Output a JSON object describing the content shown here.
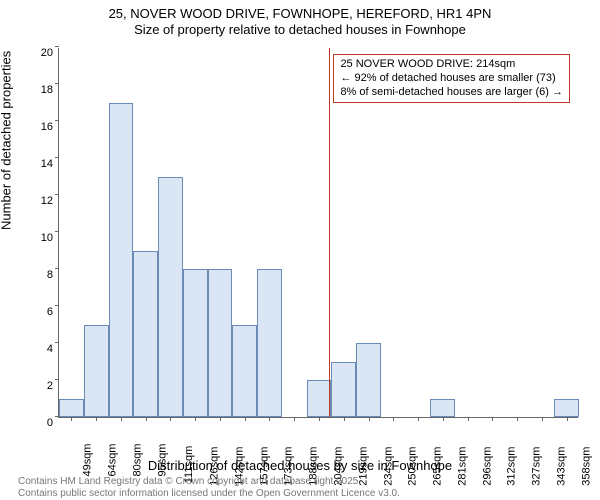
{
  "title": {
    "line1": "25, NOVER WOOD DRIVE, FOWNHOPE, HEREFORD, HR1 4PN",
    "line2": "Size of property relative to detached houses in Fownhope",
    "fontsize": 13,
    "color": "#000000"
  },
  "axes": {
    "ylabel": "Number of detached properties",
    "xlabel": "Distribution of detached houses by size in Fownhope",
    "label_fontsize": 13,
    "tick_fontsize": 11,
    "axis_color": "#666666",
    "ylim": [
      0,
      20
    ],
    "yticks": [
      0,
      2,
      4,
      6,
      8,
      10,
      12,
      14,
      16,
      18,
      20
    ]
  },
  "histogram": {
    "type": "histogram",
    "bar_fill": "#dbe6f5",
    "bar_stroke": "#6a8bb5",
    "categories": [
      "49sqm",
      "64sqm",
      "80sqm",
      "95sqm",
      "111sqm",
      "126sqm",
      "142sqm",
      "157sqm",
      "173sqm",
      "188sqm",
      "204sqm",
      "219sqm",
      "234sqm",
      "250sqm",
      "265sqm",
      "281sqm",
      "296sqm",
      "312sqm",
      "327sqm",
      "343sqm",
      "358sqm"
    ],
    "values": [
      1,
      5,
      17,
      9,
      13,
      8,
      8,
      5,
      8,
      0,
      2,
      3,
      4,
      0,
      0,
      1,
      0,
      0,
      0,
      0,
      1
    ],
    "background_color": "#ffffff"
  },
  "marker": {
    "line_color": "#c0392b",
    "x_label_ref": "219sqm",
    "box_border": "#c0392b",
    "box_bg": "#ffffff",
    "line1": "25 NOVER WOOD DRIVE: 214sqm",
    "line2": "← 92% of detached houses are smaller (73)",
    "line3": "8% of semi-detached houses are larger (6) →",
    "fontsize": 11
  },
  "footnote": {
    "line1": "Contains HM Land Registry data © Crown copyright and database right 2025.",
    "line2": "Contains public sector information licensed under the Open Government Licence v3.0.",
    "color": "#777777",
    "fontsize": 10
  }
}
